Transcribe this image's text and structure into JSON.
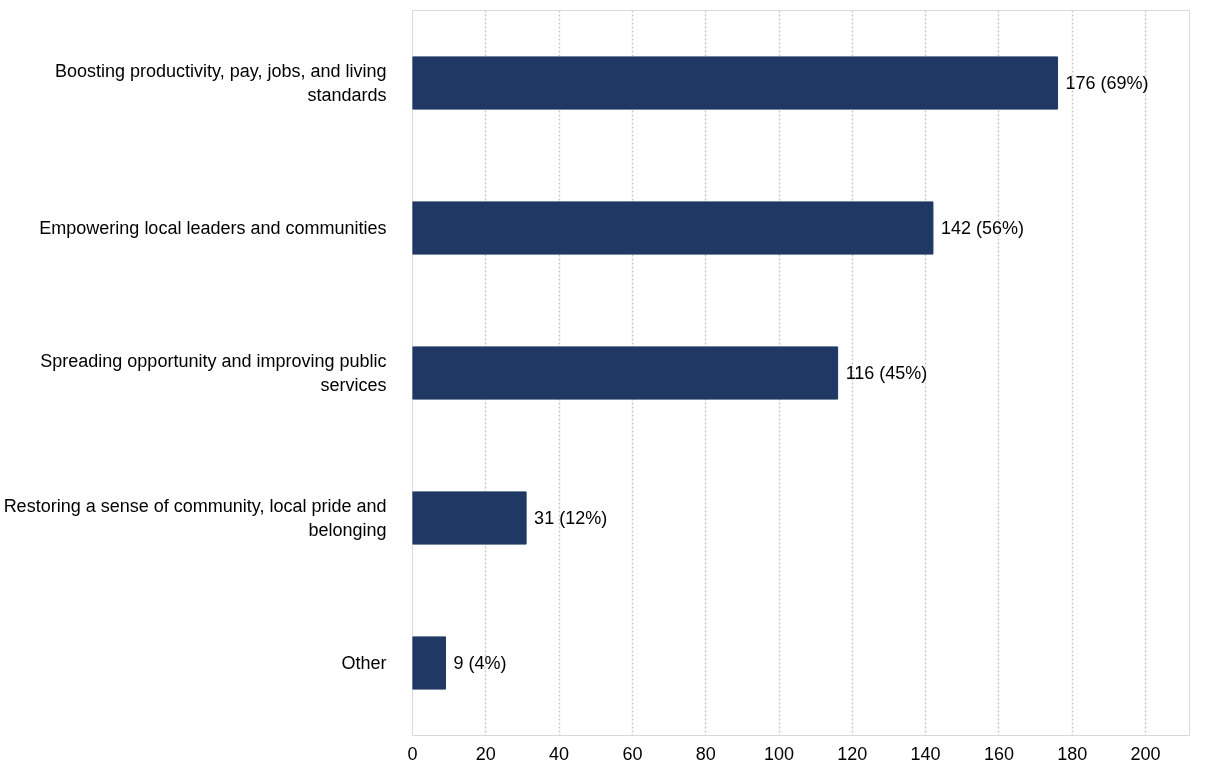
{
  "chart_data": {
    "type": "bar",
    "orientation": "horizontal",
    "categories": [
      "Boosting productivity, pay, jobs, and living\nstandards",
      "Empowering local leaders and communities",
      "Spreading opportunity and improving public\nservices",
      "Restoring a sense of community, local pride and\nbelonging",
      "Other"
    ],
    "values": [
      176,
      142,
      116,
      31,
      9
    ],
    "value_labels": [
      "176 (69%)",
      "142 (56%)",
      "116 (45%)",
      "31 (12%)",
      "9 (4%)"
    ],
    "color": "#203864",
    "xlim": [
      0,
      212
    ],
    "xticks": [
      0,
      20,
      40,
      60,
      80,
      100,
      120,
      140,
      160,
      180,
      200
    ],
    "grid": "x"
  }
}
